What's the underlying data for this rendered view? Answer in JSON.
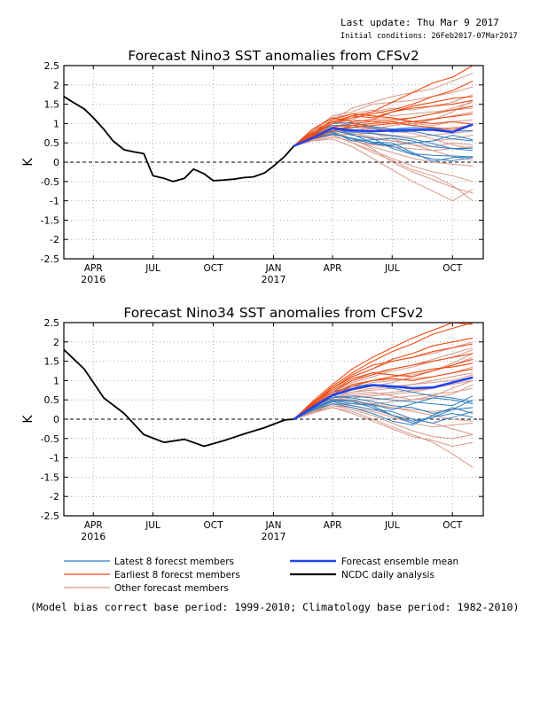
{
  "header": {
    "last_update": "Last update: Thu Mar 9 2017",
    "initial_conditions": "Initial conditions: 26Feb2017-07Mar2017"
  },
  "legend": {
    "latest": "Latest 8 forecst members",
    "earliest": "Earliest 8 forecst members",
    "other": "Other forecast members",
    "mean": "Forecast ensemble mean",
    "analysis": "NCDC daily analysis"
  },
  "footnote": "(Model bias correct base period: 1999-2010; Climatology base period: 1982-2010)",
  "colors": {
    "latest": "#2f7fc1",
    "earliest": "#f04a10",
    "other": "#d8998a",
    "mean": "#2244ee",
    "analysis": "#000000"
  },
  "chart_data": [
    {
      "type": "line",
      "title": "Forecast Nino3 SST anomalies from CFSv2",
      "ylabel": "K",
      "xlabel": "",
      "ylim": [
        -2.5,
        2.5
      ],
      "yticks": [
        -2.5,
        -2,
        -1.5,
        -1,
        -0.5,
        0,
        0.5,
        1,
        1.5,
        2,
        2.5
      ],
      "ytick_labels": [
        "-2.5",
        "-2",
        "-1.5",
        "-1",
        "-0.5",
        "0",
        "0.5",
        "1",
        "1.5",
        "2",
        "2.5"
      ],
      "xlim": [
        "2016-03-01",
        "2017-12-01"
      ],
      "xticks": [
        {
          "date": "2016-04-15",
          "label": "APR",
          "year": "2016"
        },
        {
          "date": "2016-07-15",
          "label": "JUL",
          "year": ""
        },
        {
          "date": "2016-10-15",
          "label": "OCT",
          "year": ""
        },
        {
          "date": "2017-01-15",
          "label": "JAN",
          "year": "2017"
        },
        {
          "date": "2017-04-15",
          "label": "APR",
          "year": ""
        },
        {
          "date": "2017-07-15",
          "label": "JUL",
          "year": ""
        },
        {
          "date": "2017-10-15",
          "label": "OCT",
          "year": ""
        }
      ],
      "zero_line": "dashed",
      "grid": "dotted",
      "forecast_x": [
        "2017-02-15",
        "2017-03-15",
        "2017-04-15",
        "2017-05-15",
        "2017-06-15",
        "2017-07-15",
        "2017-08-15",
        "2017-09-15",
        "2017-10-15",
        "2017-11-15"
      ],
      "analysis": {
        "x": [
          "2016-03-01",
          "2016-03-15",
          "2016-04-01",
          "2016-04-15",
          "2016-05-01",
          "2016-05-15",
          "2016-06-01",
          "2016-06-15",
          "2016-07-01",
          "2016-07-15",
          "2016-08-01",
          "2016-08-15",
          "2016-09-01",
          "2016-09-15",
          "2016-10-01",
          "2016-10-15",
          "2016-11-01",
          "2016-11-15",
          "2016-12-01",
          "2016-12-15",
          "2017-01-01",
          "2017-01-15",
          "2017-02-01",
          "2017-02-15"
        ],
        "values": [
          1.7,
          1.55,
          1.38,
          1.15,
          0.85,
          0.55,
          0.32,
          0.27,
          0.22,
          -0.35,
          -0.42,
          -0.5,
          -0.42,
          -0.18,
          -0.3,
          -0.48,
          -0.46,
          -0.44,
          -0.4,
          -0.38,
          -0.28,
          -0.1,
          0.15,
          0.42
        ]
      },
      "mean": [
        0.42,
        0.62,
        0.88,
        0.82,
        0.8,
        0.82,
        0.84,
        0.84,
        0.78,
        0.98
      ],
      "latest": [
        [
          0.42,
          0.64,
          0.78,
          0.55,
          0.58,
          0.62,
          0.55,
          0.4,
          0.35,
          0.36
        ],
        [
          0.42,
          0.7,
          0.9,
          0.72,
          0.5,
          0.44,
          0.5,
          0.55,
          0.7,
          0.58
        ],
        [
          0.42,
          0.6,
          0.72,
          0.62,
          0.52,
          0.5,
          0.25,
          0.02,
          0.12,
          0.14
        ],
        [
          0.42,
          0.75,
          0.95,
          0.95,
          0.88,
          0.78,
          0.8,
          0.7,
          0.6,
          0.55
        ],
        [
          0.42,
          0.66,
          0.82,
          0.7,
          0.62,
          0.36,
          0.2,
          0.08,
          0.04,
          0.12
        ],
        [
          0.42,
          0.62,
          0.74,
          0.6,
          0.48,
          0.42,
          0.22,
          0.18,
          0.16,
          0.14
        ],
        [
          0.42,
          0.72,
          1.0,
          1.02,
          0.92,
          0.86,
          0.9,
          0.88,
          0.8,
          0.82
        ],
        [
          0.42,
          0.68,
          0.86,
          0.78,
          0.74,
          0.68,
          0.6,
          0.48,
          0.35,
          0.3
        ]
      ],
      "earliest": [
        [
          0.42,
          0.8,
          1.05,
          1.2,
          1.3,
          1.55,
          1.8,
          2.05,
          2.2,
          2.5
        ],
        [
          0.42,
          0.75,
          1.0,
          1.15,
          1.25,
          1.35,
          1.5,
          1.7,
          1.85,
          2.1
        ],
        [
          0.42,
          0.7,
          1.0,
          1.2,
          1.15,
          1.3,
          1.4,
          1.45,
          1.5,
          1.6
        ],
        [
          0.42,
          0.68,
          0.9,
          1.0,
          1.05,
          1.1,
          1.15,
          1.25,
          1.35,
          1.45
        ],
        [
          0.42,
          0.72,
          1.1,
          1.25,
          1.2,
          1.15,
          1.05,
          1.0,
          1.05,
          0.98
        ],
        [
          0.42,
          0.6,
          0.8,
          0.95,
          1.0,
          1.05,
          0.95,
          0.9,
          0.85,
          0.95
        ],
        [
          0.42,
          0.85,
          1.15,
          1.05,
          1.1,
          1.3,
          1.45,
          1.55,
          1.65,
          1.7
        ],
        [
          0.42,
          0.66,
          0.86,
          0.9,
          0.95,
          1.0,
          1.05,
          1.12,
          1.18,
          1.25
        ]
      ],
      "other": [
        [
          0.42,
          0.72,
          1.1,
          1.4,
          1.55,
          1.7,
          1.8,
          1.9,
          2.1,
          2.3
        ],
        [
          0.42,
          0.8,
          1.2,
          1.3,
          1.5,
          1.55,
          1.6,
          1.7,
          1.8,
          1.95
        ],
        [
          0.42,
          0.65,
          1.0,
          1.1,
          1.3,
          1.4,
          1.35,
          1.45,
          1.55,
          1.75
        ],
        [
          0.42,
          0.78,
          1.15,
          1.25,
          1.35,
          1.2,
          1.25,
          1.3,
          1.35,
          1.4
        ],
        [
          0.42,
          0.6,
          0.9,
          1.05,
          1.1,
          1.15,
          1.0,
          1.1,
          1.2,
          1.3
        ],
        [
          0.42,
          0.7,
          0.95,
          0.9,
          0.85,
          0.95,
          1.0,
          0.95,
          1.05,
          1.1
        ],
        [
          0.42,
          0.62,
          0.8,
          0.8,
          0.9,
          0.85,
          0.8,
          0.85,
          0.9,
          0.95
        ],
        [
          0.42,
          0.58,
          0.7,
          0.72,
          0.75,
          0.7,
          0.65,
          0.7,
          0.75,
          0.8
        ],
        [
          0.42,
          0.66,
          0.85,
          0.7,
          0.6,
          0.55,
          0.5,
          0.55,
          0.6,
          0.7
        ],
        [
          0.42,
          0.55,
          0.65,
          0.55,
          0.45,
          0.4,
          0.35,
          0.3,
          0.35,
          0.4
        ],
        [
          0.42,
          0.6,
          0.75,
          0.6,
          0.4,
          0.25,
          0.1,
          0.0,
          -0.05,
          -0.1
        ],
        [
          0.42,
          0.58,
          0.7,
          0.5,
          0.3,
          0.1,
          -0.1,
          -0.25,
          -0.35,
          -0.5
        ],
        [
          0.42,
          0.62,
          0.8,
          0.6,
          0.35,
          0.0,
          -0.25,
          -0.45,
          -0.65,
          -0.8
        ],
        [
          0.42,
          0.55,
          0.6,
          0.4,
          0.1,
          -0.2,
          -0.5,
          -0.75,
          -1.0,
          -0.7
        ],
        [
          0.42,
          0.6,
          0.7,
          0.5,
          0.25,
          0.05,
          -0.2,
          -0.35,
          -0.6,
          -1.0
        ],
        [
          0.42,
          0.64,
          0.82,
          0.75,
          0.65,
          0.55,
          0.45,
          0.3,
          0.15,
          0.05
        ],
        [
          0.42,
          0.7,
          1.0,
          1.1,
          1.05,
          1.0,
          0.95,
          1.1,
          1.3,
          1.6
        ],
        [
          0.42,
          0.68,
          0.92,
          0.95,
          1.0,
          1.05,
          1.15,
          1.25,
          1.4,
          1.55
        ],
        [
          0.42,
          0.72,
          1.05,
          1.0,
          0.9,
          0.8,
          0.75,
          0.6,
          0.45,
          0.35
        ],
        [
          0.42,
          0.66,
          0.9,
          0.85,
          0.75,
          0.6,
          0.45,
          0.4,
          0.5,
          0.45
        ]
      ]
    },
    {
      "type": "line",
      "title": "Forecast Nino34 SST anomalies from CFSv2",
      "ylabel": "K",
      "xlabel": "",
      "ylim": [
        -2.5,
        2.5
      ],
      "yticks": [
        -2.5,
        -2,
        -1.5,
        -1,
        -0.5,
        0,
        0.5,
        1,
        1.5,
        2,
        2.5
      ],
      "ytick_labels": [
        "-2.5",
        "-2",
        "-1.5",
        "-1",
        "-0.5",
        "0",
        "0.5",
        "1",
        "1.5",
        "2",
        "2.5"
      ],
      "xlim": [
        "2016-03-01",
        "2017-12-01"
      ],
      "xticks": [
        {
          "date": "2016-04-15",
          "label": "APR",
          "year": "2016"
        },
        {
          "date": "2016-07-15",
          "label": "JUL",
          "year": ""
        },
        {
          "date": "2016-10-15",
          "label": "OCT",
          "year": ""
        },
        {
          "date": "2017-01-15",
          "label": "JAN",
          "year": "2017"
        },
        {
          "date": "2017-04-15",
          "label": "APR",
          "year": ""
        },
        {
          "date": "2017-07-15",
          "label": "JUL",
          "year": ""
        },
        {
          "date": "2017-10-15",
          "label": "OCT",
          "year": ""
        }
      ],
      "zero_line": "dashed",
      "grid": "dotted",
      "forecast_x": [
        "2017-02-15",
        "2017-03-15",
        "2017-04-15",
        "2017-05-15",
        "2017-06-15",
        "2017-07-15",
        "2017-08-15",
        "2017-09-15",
        "2017-10-15",
        "2017-11-15"
      ],
      "analysis": {
        "x": [
          "2016-03-01",
          "2016-04-01",
          "2016-05-01",
          "2016-06-01",
          "2016-07-01",
          "2016-08-01",
          "2016-09-01",
          "2016-10-01",
          "2016-11-01",
          "2016-12-01",
          "2017-01-01",
          "2017-02-01",
          "2017-02-15"
        ],
        "values": [
          1.8,
          1.3,
          0.55,
          0.15,
          -0.4,
          -0.6,
          -0.52,
          -0.7,
          -0.55,
          -0.38,
          -0.22,
          -0.02,
          0.0
        ]
      },
      "mean": [
        0.0,
        0.3,
        0.62,
        0.78,
        0.88,
        0.85,
        0.8,
        0.82,
        0.95,
        1.08
      ],
      "latest": [
        [
          0.0,
          0.28,
          0.5,
          0.45,
          0.3,
          0.1,
          -0.05,
          0.05,
          0.25,
          0.5
        ],
        [
          0.0,
          0.25,
          0.45,
          0.35,
          0.25,
          0.2,
          0.0,
          -0.1,
          0.05,
          0.2
        ],
        [
          0.0,
          0.3,
          0.6,
          0.55,
          0.45,
          0.35,
          0.3,
          0.15,
          0.25,
          0.3
        ],
        [
          0.0,
          0.22,
          0.4,
          0.3,
          0.15,
          -0.05,
          -0.15,
          0.1,
          0.3,
          0.15
        ],
        [
          0.0,
          0.32,
          0.55,
          0.6,
          0.55,
          0.5,
          0.45,
          0.4,
          0.35,
          0.6
        ],
        [
          0.0,
          0.27,
          0.48,
          0.4,
          0.38,
          0.25,
          0.4,
          0.55,
          0.5,
          0.4
        ],
        [
          0.0,
          0.35,
          0.7,
          0.85,
          0.9,
          0.8,
          0.7,
          0.6,
          0.55,
          0.45
        ],
        [
          0.0,
          0.26,
          0.5,
          0.5,
          0.35,
          0.1,
          -0.1,
          0.05,
          0.15,
          0.05
        ]
      ],
      "earliest": [
        [
          0.0,
          0.45,
          0.9,
          1.3,
          1.6,
          1.85,
          2.1,
          2.3,
          2.5,
          2.45
        ],
        [
          0.0,
          0.4,
          0.85,
          1.2,
          1.5,
          1.75,
          1.95,
          2.2,
          2.35,
          2.5
        ],
        [
          0.0,
          0.42,
          0.8,
          1.1,
          1.3,
          1.55,
          1.7,
          1.9,
          2.0,
          2.1
        ],
        [
          0.0,
          0.38,
          0.8,
          1.15,
          1.4,
          1.5,
          1.6,
          1.75,
          1.85,
          1.95
        ],
        [
          0.0,
          0.36,
          0.7,
          1.0,
          1.15,
          1.3,
          1.4,
          1.5,
          1.6,
          1.7
        ],
        [
          0.0,
          0.4,
          0.75,
          1.05,
          1.2,
          1.15,
          1.1,
          1.25,
          1.4,
          1.55
        ],
        [
          0.0,
          0.34,
          0.65,
          0.9,
          1.0,
          1.1,
          1.2,
          1.3,
          1.35,
          1.45
        ],
        [
          0.0,
          0.3,
          0.6,
          0.85,
          1.0,
          1.05,
          1.0,
          1.1,
          1.2,
          1.3
        ]
      ],
      "other": [
        [
          0.0,
          0.4,
          0.8,
          1.1,
          1.3,
          1.5,
          1.6,
          1.7,
          1.85,
          2.0
        ],
        [
          0.0,
          0.35,
          0.7,
          0.95,
          1.1,
          1.25,
          1.35,
          1.5,
          1.6,
          1.8
        ],
        [
          0.0,
          0.3,
          0.65,
          0.85,
          1.0,
          1.1,
          1.15,
          1.25,
          1.4,
          1.6
        ],
        [
          0.0,
          0.32,
          0.6,
          0.8,
          0.95,
          1.0,
          1.05,
          1.1,
          1.2,
          1.35
        ],
        [
          0.0,
          0.28,
          0.55,
          0.7,
          0.8,
          0.85,
          0.9,
          0.95,
          1.0,
          1.15
        ],
        [
          0.0,
          0.25,
          0.5,
          0.6,
          0.65,
          0.7,
          0.75,
          0.8,
          0.9,
          1.0
        ],
        [
          0.0,
          0.22,
          0.45,
          0.5,
          0.5,
          0.55,
          0.6,
          0.65,
          0.7,
          0.8
        ],
        [
          0.0,
          0.2,
          0.4,
          0.4,
          0.35,
          0.3,
          0.25,
          0.2,
          0.25,
          0.3
        ],
        [
          0.0,
          0.18,
          0.35,
          0.3,
          0.2,
          0.05,
          -0.1,
          -0.2,
          -0.15,
          -0.1
        ],
        [
          0.0,
          0.2,
          0.35,
          0.25,
          0.1,
          -0.1,
          -0.3,
          -0.45,
          -0.5,
          -0.4
        ],
        [
          0.0,
          0.15,
          0.3,
          0.2,
          0.0,
          -0.2,
          -0.4,
          -0.6,
          -0.9,
          -1.25
        ],
        [
          0.0,
          0.18,
          0.3,
          0.15,
          -0.05,
          -0.25,
          -0.45,
          -0.55,
          -0.7,
          -0.6
        ],
        [
          0.0,
          0.22,
          0.4,
          0.35,
          0.25,
          0.1,
          0.0,
          -0.1,
          -0.25,
          -0.4
        ],
        [
          0.0,
          0.3,
          0.6,
          0.75,
          0.85,
          0.95,
          1.1,
          1.25,
          1.45,
          1.7
        ],
        [
          0.0,
          0.35,
          0.75,
          1.0,
          1.2,
          1.3,
          1.4,
          1.55,
          1.7,
          1.85
        ],
        [
          0.0,
          0.26,
          0.5,
          0.55,
          0.6,
          0.65,
          0.7,
          0.8,
          0.95,
          1.1
        ],
        [
          0.0,
          0.24,
          0.5,
          0.45,
          0.4,
          0.45,
          0.5,
          0.6,
          0.8,
          1.0
        ],
        [
          0.0,
          0.3,
          0.55,
          0.65,
          0.7,
          0.6,
          0.5,
          0.55,
          0.65,
          0.9
        ],
        [
          0.0,
          0.28,
          0.52,
          0.48,
          0.4,
          0.3,
          0.2,
          0.1,
          0.0,
          -0.05
        ],
        [
          0.0,
          0.32,
          0.62,
          0.7,
          0.75,
          0.8,
          0.9,
          1.0,
          1.1,
          1.2
        ]
      ]
    }
  ]
}
